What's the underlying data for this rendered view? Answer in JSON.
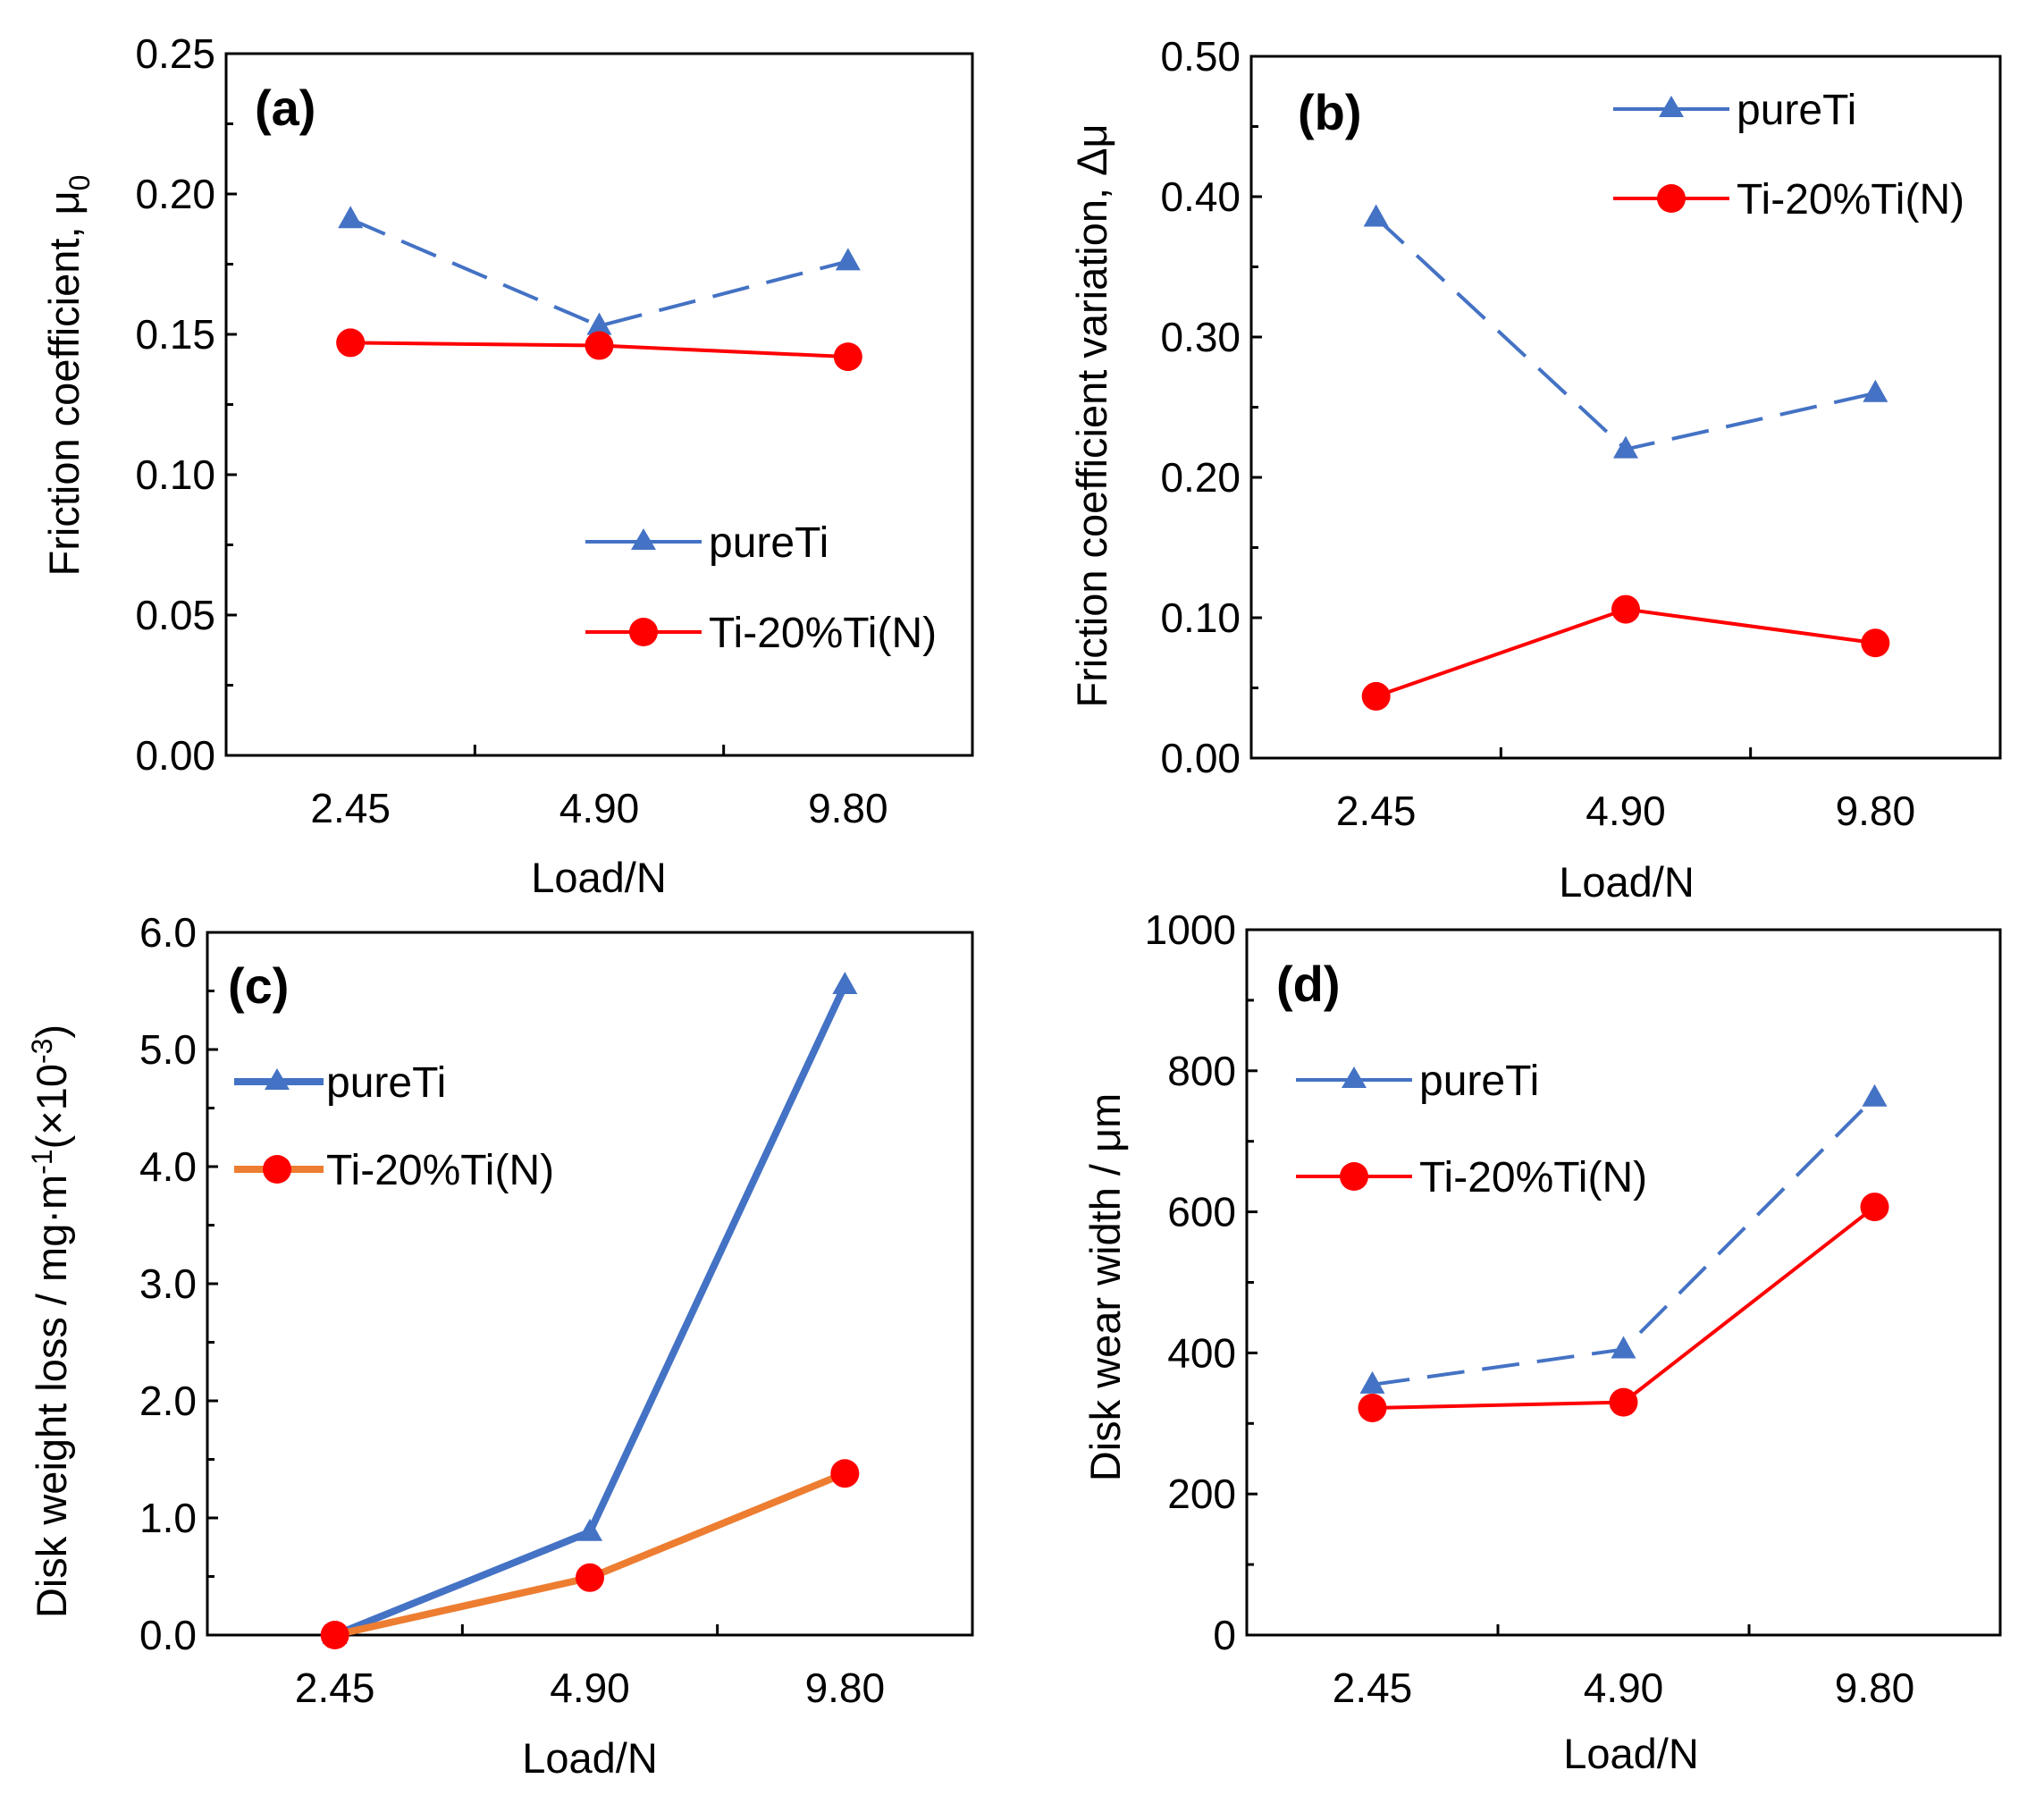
{
  "colors": {
    "blue": "#4472C4",
    "red": "#FF0000",
    "orange": "#ED7D31",
    "axis": "#000000"
  },
  "chart_data": [
    {
      "type": "line",
      "panel_label": "(a)",
      "xlabel": "Load/N",
      "ylabel": "Friction coefficient, μ",
      "ylabel_sub": "0",
      "categories": [
        "2.45",
        "4.90",
        "9.80"
      ],
      "ylim": [
        0,
        0.25
      ],
      "yticks": [
        "0.00",
        "0.05",
        "0.10",
        "0.15",
        "0.20",
        "0.25"
      ],
      "legend_position": "right-middle",
      "series": [
        {
          "name": "pureTi",
          "values": [
            0.191,
            0.153,
            0.176
          ],
          "color": "#4472C4",
          "marker": "triangle",
          "dash": true
        },
        {
          "name": "Ti-20%Ti(N)",
          "values": [
            0.147,
            0.146,
            0.142
          ],
          "color": "#FF0000",
          "marker": "circle",
          "dash": false
        }
      ]
    },
    {
      "type": "line",
      "panel_label": "(b)",
      "xlabel": "Load/N",
      "ylabel": "Friction coefficient variation, Δμ",
      "ylabel_sub": "",
      "categories": [
        "2.45",
        "4.90",
        "9.80"
      ],
      "ylim": [
        0,
        0.5
      ],
      "yticks": [
        "0.00",
        "0.10",
        "0.20",
        "0.30",
        "0.40",
        "0.50"
      ],
      "legend_position": "top-right",
      "series": [
        {
          "name": "pureTi",
          "values": [
            0.385,
            0.22,
            0.26
          ],
          "color": "#4472C4",
          "marker": "triangle",
          "dash": true
        },
        {
          "name": "Ti-20%Ti(N)",
          "values": [
            0.044,
            0.106,
            0.082
          ],
          "color": "#FF0000",
          "marker": "circle",
          "dash": false
        }
      ]
    },
    {
      "type": "line",
      "panel_label": "(c)",
      "xlabel": "Load/N",
      "ylabel": "Disk weight  loss / mg·m",
      "ylabel_sup": "-1",
      "ylabel_tail": "(×10",
      "ylabel_sup2": "-3",
      "ylabel_end": ")",
      "categories": [
        "2.45",
        "4.90",
        "9.80"
      ],
      "ylim": [
        0,
        6.0
      ],
      "yticks": [
        "0.0",
        "1.0",
        "2.0",
        "3.0",
        "4.0",
        "5.0",
        "6.0"
      ],
      "legend_position": "top-left",
      "series": [
        {
          "name": "pureTi",
          "values": [
            0.0,
            0.88,
            5.55
          ],
          "color": "#4472C4",
          "marker": "triangle",
          "dash": false,
          "thick": true
        },
        {
          "name": "Ti-20%Ti(N)",
          "values": [
            0.0,
            0.49,
            1.38
          ],
          "color": "#ED7D31",
          "marker": "circle",
          "dash": false,
          "thick": true
        }
      ]
    },
    {
      "type": "line",
      "panel_label": "(d)",
      "xlabel": "Load/N",
      "ylabel": "Disk wear width  / μm",
      "ylabel_sub": "",
      "categories": [
        "2.45",
        "4.90",
        "9.80"
      ],
      "ylim": [
        0,
        1000
      ],
      "yticks": [
        "0",
        "200",
        "400",
        "600",
        "800",
        "1000"
      ],
      "legend_position": "top-left",
      "series": [
        {
          "name": "pureTi",
          "values": [
            355,
            405,
            762
          ],
          "color": "#4472C4",
          "marker": "triangle",
          "dash": true
        },
        {
          "name": "Ti-20%Ti(N)",
          "values": [
            322,
            330,
            607
          ],
          "color": "#FF0000",
          "marker": "circle",
          "dash": false
        }
      ]
    }
  ]
}
